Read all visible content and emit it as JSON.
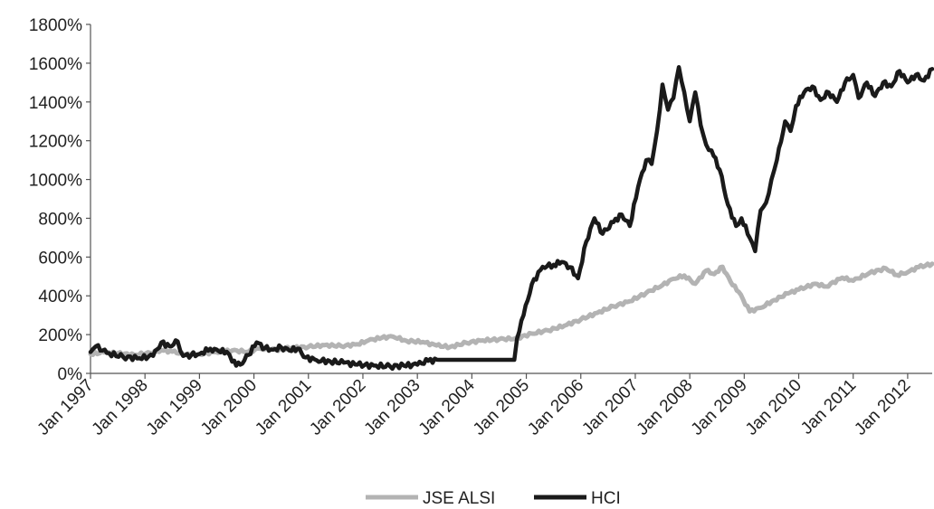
{
  "chart_data": {
    "type": "line",
    "title": "",
    "xlabel": "",
    "ylabel": "",
    "ylim": [
      0,
      1800
    ],
    "y_ticks": [
      "0%",
      "200%",
      "400%",
      "600%",
      "800%",
      "1000%",
      "1200%",
      "1400%",
      "1600%",
      "1800%"
    ],
    "y_tick_values": [
      0,
      200,
      400,
      600,
      800,
      1000,
      1200,
      1400,
      1600,
      1800
    ],
    "x_ticks": [
      "Jan 1997",
      "Jan 1998",
      "Jan 1999",
      "Jan 2000",
      "Jan 2001",
      "Jan 2002",
      "Jan 2003",
      "Jan 2004",
      "Jan 2005",
      "Jan 2006",
      "Jan 2007",
      "Jan 2008",
      "Jan 2009",
      "Jan 2010",
      "Jan 2011",
      "Jan 2012"
    ],
    "x_tick_values": [
      1997,
      1998,
      1999,
      2000,
      2001,
      2002,
      2003,
      2004,
      2005,
      2006,
      2007,
      2008,
      2009,
      2010,
      2011,
      2012
    ],
    "xlim": [
      1997,
      2012.45
    ],
    "grid": false,
    "legend_position": "bottom-center",
    "series": [
      {
        "name": "JSE ALSI",
        "color": "#b3b3b3",
        "x": [
          1997.0,
          1997.25,
          1997.5,
          1997.8,
          1998.1,
          1998.3,
          1998.5,
          1998.75,
          1999.0,
          1999.3,
          1999.6,
          1999.9,
          2000.1,
          2000.4,
          2000.7,
          2001.0,
          2001.3,
          2001.6,
          2001.9,
          2002.1,
          2002.35,
          2002.55,
          2002.8,
          2003.1,
          2003.35,
          2003.6,
          2003.9,
          2004.2,
          2004.5,
          2004.8,
          2005.1,
          2005.4,
          2005.7,
          2006.0,
          2006.3,
          2006.6,
          2006.9,
          2007.2,
          2007.5,
          2007.7,
          2007.9,
          2008.1,
          2008.3,
          2008.45,
          2008.6,
          2008.75,
          2008.9,
          2009.1,
          2009.3,
          2009.55,
          2009.8,
          2010.0,
          2010.3,
          2010.5,
          2010.8,
          2011.0,
          2011.3,
          2011.6,
          2011.8,
          2012.0,
          2012.2,
          2012.45
        ],
        "values": [
          100,
          108,
          103,
          96,
          105,
          120,
          112,
          98,
          100,
          110,
          118,
          112,
          128,
          122,
          132,
          137,
          146,
          141,
          150,
          170,
          184,
          190,
          168,
          162,
          144,
          136,
          158,
          170,
          176,
          180,
          205,
          222,
          246,
          278,
          312,
          346,
          372,
          415,
          455,
          488,
          505,
          462,
          530,
          512,
          550,
          472,
          420,
          320,
          338,
          378,
          412,
          432,
          462,
          448,
          494,
          478,
          518,
          542,
          508,
          522,
          548,
          565
        ]
      },
      {
        "name": "HCI",
        "color": "#1a1a1a",
        "x": [
          1997.0,
          1997.1,
          1997.3,
          1997.6,
          1997.9,
          1998.15,
          1998.3,
          1998.45,
          1998.6,
          1998.7,
          1998.85,
          1999.0,
          1999.2,
          1999.35,
          1999.5,
          1999.6,
          1999.75,
          1999.9,
          2000.05,
          2000.2,
          2000.35,
          2000.5,
          2000.65,
          2000.8,
          2000.95,
          2001.15,
          2001.4,
          2001.65,
          2001.9,
          2002.2,
          2002.5,
          2002.75,
          2003.0,
          2003.2,
          2003.4,
          2003.7,
          2004.0,
          2004.3,
          2004.6,
          2004.78,
          2004.83,
          2004.95,
          2005.1,
          2005.3,
          2005.5,
          2005.65,
          2005.8,
          2005.95,
          2006.1,
          2006.25,
          2006.4,
          2006.6,
          2006.75,
          2006.9,
          2007.05,
          2007.2,
          2007.3,
          2007.4,
          2007.5,
          2007.6,
          2007.7,
          2007.8,
          2007.9,
          2008.0,
          2008.1,
          2008.2,
          2008.3,
          2008.4,
          2008.55,
          2008.7,
          2008.85,
          2008.95,
          2009.1,
          2009.2,
          2009.3,
          2009.4,
          2009.5,
          2009.6,
          2009.75,
          2009.85,
          2009.95,
          2010.1,
          2010.25,
          2010.4,
          2010.55,
          2010.7,
          2010.85,
          2011.0,
          2011.1,
          2011.25,
          2011.4,
          2011.55,
          2011.7,
          2011.85,
          2012.0,
          2012.15,
          2012.3,
          2012.45
        ],
        "values": [
          110,
          140,
          105,
          85,
          78,
          90,
          160,
          140,
          165,
          90,
          95,
          100,
          128,
          115,
          112,
          60,
          45,
          95,
          160,
          130,
          122,
          135,
          118,
          128,
          82,
          68,
          62,
          55,
          45,
          40,
          36,
          40,
          45,
          65,
          70,
          70,
          70,
          70,
          70,
          70,
          180,
          300,
          460,
          550,
          560,
          575,
          548,
          490,
          680,
          800,
          720,
          780,
          820,
          760,
          960,
          1100,
          1080,
          1250,
          1490,
          1360,
          1420,
          1580,
          1450,
          1300,
          1450,
          1280,
          1180,
          1150,
          1050,
          870,
          760,
          800,
          700,
          630,
          840,
          880,
          1000,
          1100,
          1300,
          1250,
          1380,
          1450,
          1480,
          1410,
          1450,
          1400,
          1500,
          1540,
          1420,
          1500,
          1430,
          1500,
          1480,
          1560,
          1500,
          1540,
          1510,
          1570
        ]
      }
    ]
  }
}
